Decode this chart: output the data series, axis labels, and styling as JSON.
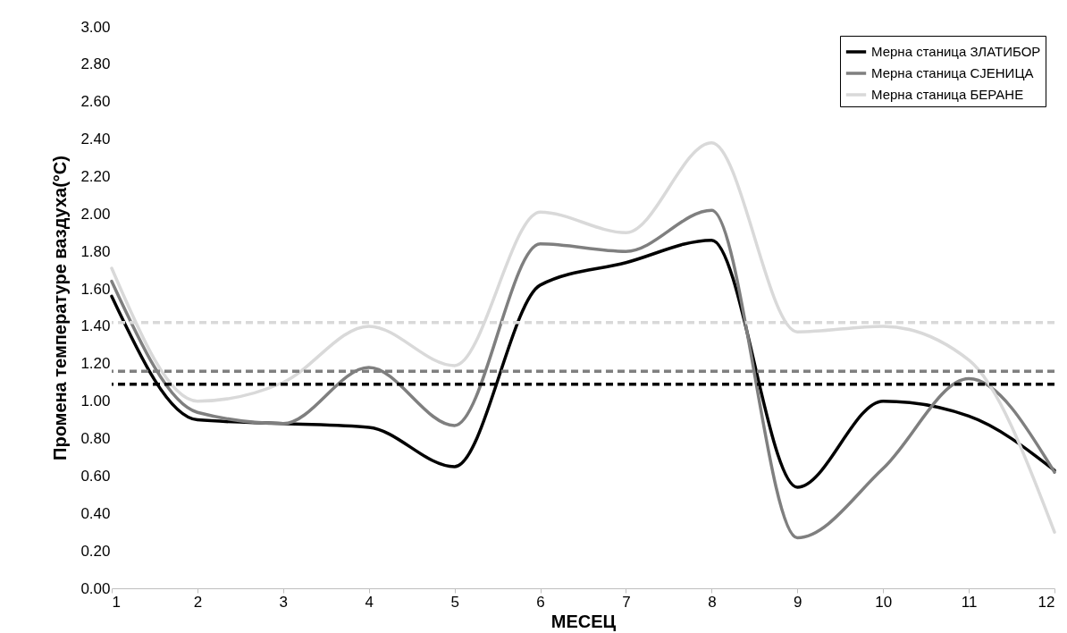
{
  "chart_data": {
    "type": "line",
    "xlabel": "МЕСЕЦ",
    "ylabel": "Промена температуре ваздуха(°C)",
    "x": [
      1,
      2,
      3,
      4,
      5,
      6,
      7,
      8,
      9,
      10,
      11,
      12
    ],
    "xlim": [
      1,
      12
    ],
    "xticks": [
      1,
      2,
      3,
      4,
      5,
      6,
      7,
      8,
      9,
      10,
      11,
      12
    ],
    "ylim": [
      0,
      3
    ],
    "yticks": [
      {
        "value": 0,
        "label": "0.00"
      },
      {
        "value": 0.2,
        "label": "0.20"
      },
      {
        "value": 0.4,
        "label": "0.40"
      },
      {
        "value": 0.6,
        "label": "0.60"
      },
      {
        "value": 0.8,
        "label": "0.80"
      },
      {
        "value": 1,
        "label": "1.00"
      },
      {
        "value": 1.2,
        "label": "1.20"
      },
      {
        "value": 1.4,
        "label": "1.40"
      },
      {
        "value": 1.6,
        "label": "1.60"
      },
      {
        "value": 1.8,
        "label": "1.80"
      },
      {
        "value": 2,
        "label": "2.00"
      },
      {
        "value": 2.2,
        "label": "2.20"
      },
      {
        "value": 2.4,
        "label": "2.40"
      },
      {
        "value": 2.6,
        "label": "2.60"
      },
      {
        "value": 2.8,
        "label": "2.80"
      },
      {
        "value": 3,
        "label": "3.00"
      }
    ],
    "series": [
      {
        "name": "Мерна станица ЗЛАТИБОР",
        "color": "#000000",
        "values": [
          1.56,
          0.9,
          0.88,
          0.86,
          0.65,
          1.62,
          1.74,
          1.86,
          0.54,
          1.0,
          0.92,
          0.63
        ]
      },
      {
        "name": "Мерна станица СЈЕНИЦА",
        "color": "#7f7f7f",
        "values": [
          1.64,
          0.94,
          0.88,
          1.18,
          0.87,
          1.84,
          1.8,
          2.02,
          0.27,
          0.64,
          1.12,
          0.62
        ]
      },
      {
        "name": "Мерна станица БЕРАНЕ",
        "color": "#d9d9d9",
        "values": [
          1.71,
          1.0,
          1.1,
          1.4,
          1.19,
          2.01,
          1.9,
          2.38,
          1.37,
          1.4,
          1.22,
          0.3
        ]
      }
    ],
    "ref_lines": [
      {
        "axis": "y",
        "value": 1.09,
        "color": "#000000",
        "line_style": "dashed"
      },
      {
        "axis": "y",
        "value": 1.16,
        "color": "#7f7f7f",
        "line_style": "dashed"
      },
      {
        "axis": "y",
        "value": 1.42,
        "color": "#d9d9d9",
        "line_style": "dashed"
      }
    ],
    "legend": "top right",
    "grid": false,
    "marker": "none",
    "line_style": "solid"
  }
}
